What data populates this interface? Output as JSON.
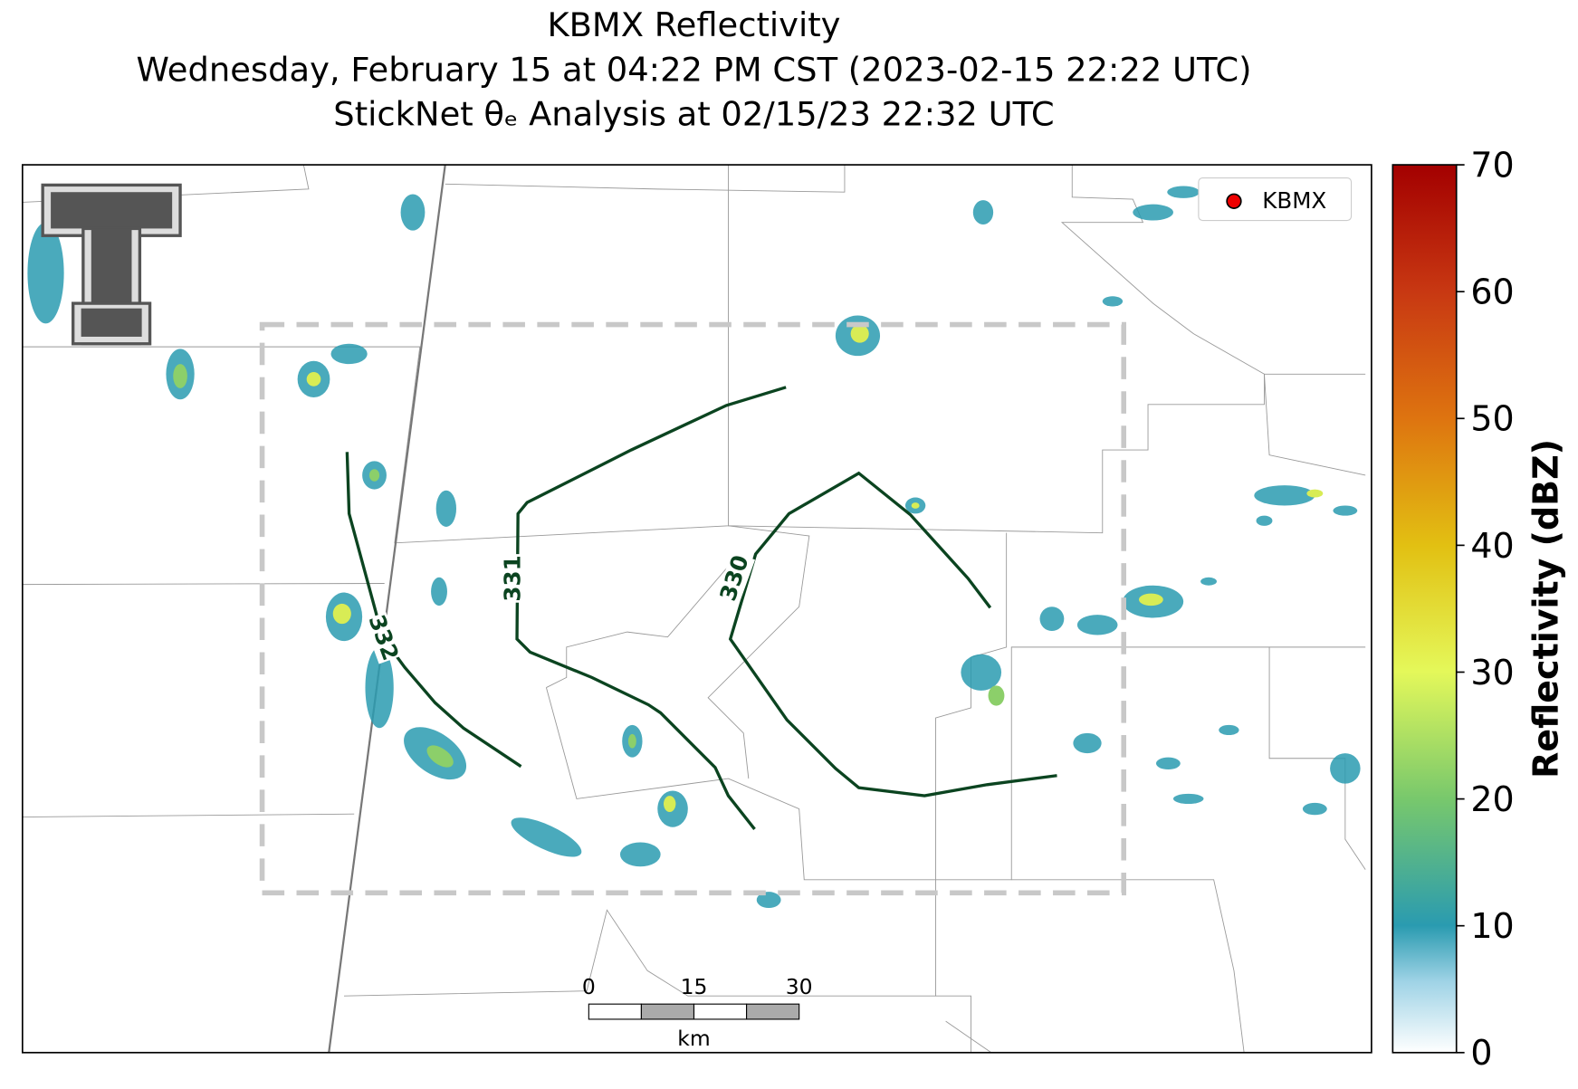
{
  "title": {
    "line1": "KBMX Reflectivity",
    "line2": "Wednesday, February 15 at 04:22 PM CST (2023-02-15 22:22 UTC)",
    "line3": "StickNet θₑ Analysis at 02/15/23 22:32 UTC"
  },
  "legend": {
    "label": "KBMX"
  },
  "contours": [
    {
      "label": "332"
    },
    {
      "label": "331"
    },
    {
      "label": "330"
    }
  ],
  "scale_bar": {
    "ticks": [
      "0",
      "15",
      "30"
    ],
    "unit": "km"
  },
  "colorbar": {
    "label": "Reflectivity (dBZ)",
    "lim": [
      0,
      70
    ],
    "ticks": [
      0,
      10,
      20,
      30,
      40,
      50,
      60,
      70
    ]
  }
}
